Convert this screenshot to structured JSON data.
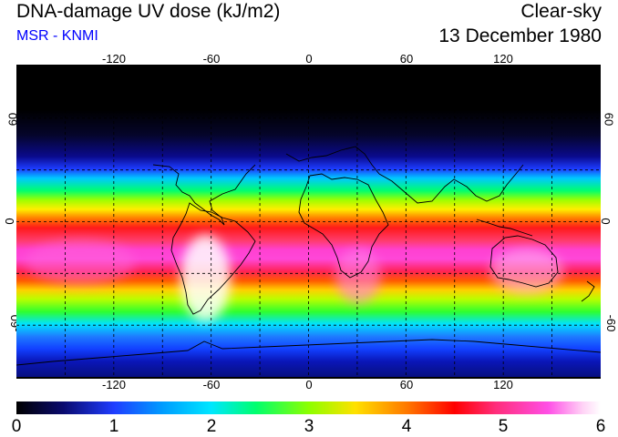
{
  "header": {
    "title": "DNA-damage UV dose (kJ/m2)",
    "source": "MSR - KNMI",
    "condition": "Clear-sky",
    "date": "13 December 1980"
  },
  "axes": {
    "longitude_ticks": [
      "-120",
      "-60",
      "0",
      "60",
      "120"
    ],
    "latitude_ticks_left": [
      "60",
      "0",
      "-60"
    ],
    "latitude_ticks_right": [
      "60",
      "0",
      "-60"
    ]
  },
  "colorbar": {
    "labels": [
      "0",
      "1",
      "2",
      "3",
      "4",
      "5",
      "6"
    ],
    "min": 0,
    "max": 6
  },
  "map": {
    "lon_range": [
      -180,
      180
    ],
    "lat_range": [
      -90,
      90
    ],
    "grid_step_deg": 30
  },
  "colors": {
    "subtitle": "#0000ff",
    "text": "#000000"
  }
}
